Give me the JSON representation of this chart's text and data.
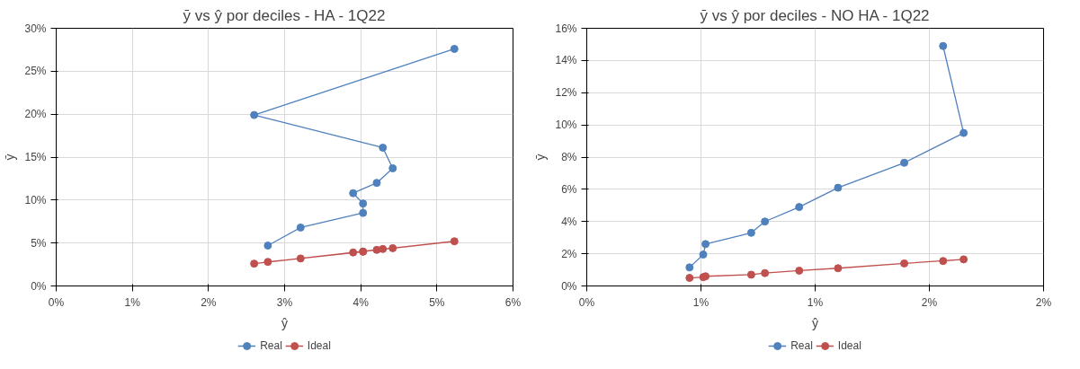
{
  "chart_data": [
    {
      "type": "line",
      "title": "ȳ vs ŷ por deciles - HA - 1Q22",
      "xlabel": "ŷ",
      "ylabel": "ȳ",
      "marker": "circle",
      "grid": true,
      "legend": "bottom",
      "xlim": [
        0,
        6
      ],
      "xticks": [
        {
          "value": 0,
          "label": "0%"
        },
        {
          "value": 1,
          "label": "1%"
        },
        {
          "value": 2,
          "label": "2%"
        },
        {
          "value": 3,
          "label": "3%"
        },
        {
          "value": 4,
          "label": "4%"
        },
        {
          "value": 5,
          "label": "5%"
        },
        {
          "value": 6,
          "label": "6%"
        }
      ],
      "ylim": [
        0,
        30
      ],
      "yticks": [
        {
          "value": 0,
          "label": "0%"
        },
        {
          "value": 5,
          "label": "5%"
        },
        {
          "value": 10,
          "label": "10%"
        },
        {
          "value": 15,
          "label": "15%"
        },
        {
          "value": 20,
          "label": "20%"
        },
        {
          "value": 25,
          "label": "25%"
        },
        {
          "value": 30,
          "label": "30%"
        }
      ],
      "series": [
        {
          "name": "Real",
          "color": "#4f81bd",
          "x": [
            5.23,
            2.6,
            4.29,
            4.42,
            4.21,
            3.9,
            4.03,
            4.03,
            3.21,
            2.78
          ],
          "values": [
            27.6,
            19.9,
            16.1,
            13.7,
            12.0,
            10.8,
            9.6,
            8.5,
            6.8,
            4.7
          ]
        },
        {
          "name": "Ideal",
          "color": "#c0504d",
          "x": [
            5.23,
            2.6,
            4.29,
            4.42,
            4.21,
            3.9,
            4.03,
            4.03,
            3.21,
            2.78
          ],
          "values": [
            5.2,
            2.6,
            4.3,
            4.4,
            4.2,
            3.9,
            4.0,
            4.0,
            3.2,
            2.8
          ]
        }
      ]
    },
    {
      "type": "line",
      "title": "ȳ vs ŷ por deciles - NO HA - 1Q22",
      "xlabel": "ŷ",
      "ylabel": "ȳ",
      "marker": "circle",
      "grid": true,
      "legend": "bottom",
      "xlim": [
        0,
        2
      ],
      "xticks": [
        {
          "value": 0,
          "label": "0%"
        },
        {
          "value": 0.5,
          "label": "1%"
        },
        {
          "value": 1,
          "label": "1%"
        },
        {
          "value": 1.5,
          "label": "2%"
        },
        {
          "value": 2,
          "label": "2%"
        }
      ],
      "ylim": [
        0,
        16
      ],
      "yticks": [
        {
          "value": 0,
          "label": "0%"
        },
        {
          "value": 2,
          "label": "2%"
        },
        {
          "value": 4,
          "label": "4%"
        },
        {
          "value": 6,
          "label": "6%"
        },
        {
          "value": 8,
          "label": "8%"
        },
        {
          "value": 10,
          "label": "10%"
        },
        {
          "value": 12,
          "label": "12%"
        },
        {
          "value": 14,
          "label": "14%"
        },
        {
          "value": 16,
          "label": "16%"
        }
      ],
      "series": [
        {
          "name": "Real",
          "color": "#4f81bd",
          "x": [
            1.56,
            1.65,
            1.39,
            1.1,
            0.93,
            0.78,
            0.72,
            0.52,
            0.51,
            0.45
          ],
          "values": [
            14.9,
            9.5,
            7.65,
            6.1,
            4.9,
            4.0,
            3.3,
            2.6,
            1.95,
            1.15
          ]
        },
        {
          "name": "Ideal",
          "color": "#c0504d",
          "x": [
            1.56,
            1.65,
            1.39,
            1.1,
            0.93,
            0.78,
            0.72,
            0.52,
            0.51,
            0.45
          ],
          "values": [
            1.55,
            1.65,
            1.4,
            1.1,
            0.95,
            0.8,
            0.7,
            0.6,
            0.55,
            0.5
          ]
        }
      ]
    }
  ]
}
